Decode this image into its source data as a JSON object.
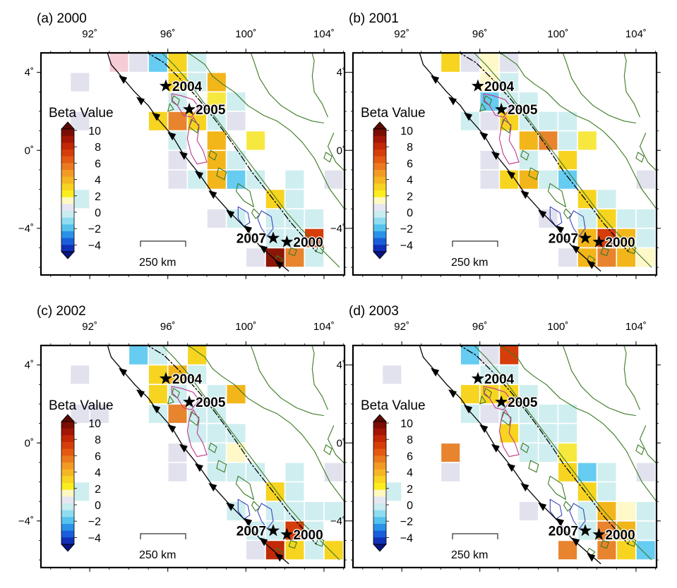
{
  "figure": {
    "panels": [
      {
        "label": "(a) 2000",
        "cells": [
          [
            93,
            4,
            "#f6ccd6"
          ],
          [
            94,
            4,
            "#e2e2ef"
          ],
          [
            95,
            4,
            "#66ccf2"
          ],
          [
            96,
            4,
            "#f7d420"
          ],
          [
            97,
            4,
            "#cfeef0"
          ],
          [
            98,
            3,
            "#f3b61a"
          ],
          [
            97,
            3,
            "#cfeef0"
          ],
          [
            96,
            3,
            "#f7d420"
          ],
          [
            91,
            3,
            "#e2e2ef"
          ],
          [
            96,
            2,
            "#cfeef0"
          ],
          [
            98,
            2,
            "#f7e840"
          ],
          [
            99,
            2,
            "#cfeef0"
          ],
          [
            95,
            1,
            "#f7d420"
          ],
          [
            96,
            1,
            "#e8842e"
          ],
          [
            97,
            1,
            "#f7d420"
          ],
          [
            98,
            1,
            "#cfeef0"
          ],
          [
            99,
            1,
            "#e2e2ef"
          ],
          [
            91,
            1,
            "#e2e2ef"
          ],
          [
            96,
            0,
            "#cfeef0"
          ],
          [
            98,
            0,
            "#f3b61a"
          ],
          [
            100,
            0,
            "#f7e840"
          ],
          [
            96,
            -1,
            "#e2e2ef"
          ],
          [
            98,
            -1,
            "#f3b61a"
          ],
          [
            99,
            -1,
            "#cfeef0"
          ],
          [
            96,
            -2,
            "#e2e2ef"
          ],
          [
            97,
            -2,
            "#cfeef0"
          ],
          [
            98,
            -2,
            "#f3b61a"
          ],
          [
            99,
            -2,
            "#66ccf2"
          ],
          [
            100,
            -2,
            "#cfeef0"
          ],
          [
            102,
            -2,
            "#cfeef0"
          ],
          [
            104,
            -2,
            "#e2e2ef"
          ],
          [
            91,
            -3,
            "#cfeef0"
          ],
          [
            101,
            -3,
            "#f7d420"
          ],
          [
            102,
            -3,
            "#cfeef0"
          ],
          [
            98,
            -4,
            "#e2e2ef"
          ],
          [
            99,
            -4,
            "#cfeef0"
          ],
          [
            101,
            -4,
            "#cfeef0"
          ],
          [
            102,
            -4,
            "#cfeef0"
          ],
          [
            103,
            -4,
            "#cfeef0"
          ],
          [
            101,
            -5,
            "#cfeef0"
          ],
          [
            102,
            -5,
            "#cfeef0"
          ],
          [
            103,
            -5,
            "#d53e0a"
          ],
          [
            100,
            -6,
            "#e2e2ef"
          ],
          [
            101,
            -6,
            "#8a1708"
          ],
          [
            102,
            -6,
            "#e8842e"
          ],
          [
            103,
            -6,
            "#cfeef0"
          ]
        ]
      },
      {
        "label": "(b) 2001",
        "cells": [
          [
            94,
            4,
            "#f7d420"
          ],
          [
            95,
            4,
            "#e2e2ef"
          ],
          [
            96,
            4,
            "#fff8c8"
          ],
          [
            97,
            4,
            "#e2e2ef"
          ],
          [
            96,
            3,
            "#fff8c8"
          ],
          [
            97,
            3,
            "#cfeef0"
          ],
          [
            96,
            2,
            "#66ccf2"
          ],
          [
            97,
            2,
            "#cfeef0"
          ],
          [
            98,
            2,
            "#cfeef0"
          ],
          [
            95,
            1,
            "#cfeef0"
          ],
          [
            96,
            1,
            "#e2e2ef"
          ],
          [
            97,
            1,
            "#f7d420"
          ],
          [
            98,
            1,
            "#cfeef0"
          ],
          [
            99,
            1,
            "#cfeef0"
          ],
          [
            100,
            1,
            "#cfeef0"
          ],
          [
            98,
            0,
            "#f3b61a"
          ],
          [
            99,
            0,
            "#e8842e"
          ],
          [
            100,
            0,
            "#cfeef0"
          ],
          [
            101,
            0,
            "#f7e840"
          ],
          [
            96,
            -1,
            "#e2e2ef"
          ],
          [
            98,
            -1,
            "#cfeef0"
          ],
          [
            100,
            -1,
            "#f7d420"
          ],
          [
            96,
            -2,
            "#e2e2ef"
          ],
          [
            97,
            -2,
            "#f7d420"
          ],
          [
            98,
            -2,
            "#f3b61a"
          ],
          [
            99,
            -2,
            "#cfeef0"
          ],
          [
            100,
            -2,
            "#66ccf2"
          ],
          [
            104,
            -2,
            "#e2e2ef"
          ],
          [
            101,
            -3,
            "#f7d420"
          ],
          [
            102,
            -3,
            "#cfeef0"
          ],
          [
            99,
            -4,
            "#e2e2ef"
          ],
          [
            101,
            -4,
            "#cfeef0"
          ],
          [
            102,
            -4,
            "#f7d420"
          ],
          [
            103,
            -4,
            "#cfeef0"
          ],
          [
            104,
            -4,
            "#cfeef0"
          ],
          [
            101,
            -5,
            "#f3b61a"
          ],
          [
            102,
            -5,
            "#d53e0a"
          ],
          [
            103,
            -5,
            "#f3b61a"
          ],
          [
            104,
            -5,
            "#cfeef0"
          ],
          [
            100,
            -6,
            "#e2e2ef"
          ],
          [
            101,
            -6,
            "#f3b61a"
          ],
          [
            102,
            -6,
            "#e8842e"
          ],
          [
            103,
            -6,
            "#f3b61a"
          ],
          [
            104,
            -6,
            "#fff8c8"
          ]
        ]
      },
      {
        "label": "(c) 2002",
        "cells": [
          [
            94,
            4,
            "#66ccf2"
          ],
          [
            95,
            4,
            "#cfeef0"
          ],
          [
            97,
            4,
            "#f7d420"
          ],
          [
            91,
            3,
            "#e2e2ef"
          ],
          [
            95,
            3,
            "#f7d420"
          ],
          [
            96,
            3,
            "#f3b61a"
          ],
          [
            97,
            3,
            "#cfeef0"
          ],
          [
            95,
            2,
            "#f7d420"
          ],
          [
            96,
            2,
            "#cfeef0"
          ],
          [
            98,
            2,
            "#cfeef0"
          ],
          [
            99,
            2,
            "#f3b61a"
          ],
          [
            91,
            1,
            "#e2e2ef"
          ],
          [
            92,
            1,
            "#e2e2ef"
          ],
          [
            95,
            1,
            "#cfeef0"
          ],
          [
            96,
            1,
            "#e8842e"
          ],
          [
            97,
            1,
            "#cfeef0"
          ],
          [
            98,
            1,
            "#cfeef0"
          ],
          [
            97,
            0,
            "#cfeef0"
          ],
          [
            98,
            0,
            "#cfeef0"
          ],
          [
            99,
            0,
            "#cfeef0"
          ],
          [
            96,
            -1,
            "#e2e2ef"
          ],
          [
            98,
            -1,
            "#cfeef0"
          ],
          [
            99,
            -1,
            "#fff8c8"
          ],
          [
            96,
            -2,
            "#e2e2ef"
          ],
          [
            98,
            -2,
            "#cfeef0"
          ],
          [
            99,
            -2,
            "#cfeef0"
          ],
          [
            100,
            -2,
            "#cfeef0"
          ],
          [
            102,
            -2,
            "#cfeef0"
          ],
          [
            104,
            -2,
            "#e2e2ef"
          ],
          [
            91,
            -3,
            "#cfeef0"
          ],
          [
            101,
            -3,
            "#f7d420"
          ],
          [
            102,
            -3,
            "#cfeef0"
          ],
          [
            99,
            -4,
            "#cfeef0"
          ],
          [
            101,
            -4,
            "#cfeef0"
          ],
          [
            102,
            -4,
            "#cfeef0"
          ],
          [
            103,
            -4,
            "#cfeef0"
          ],
          [
            104,
            -4,
            "#cfeef0"
          ],
          [
            100,
            -5,
            "#cfeef0"
          ],
          [
            101,
            -5,
            "#cfeef0"
          ],
          [
            102,
            -5,
            "#d53e0a"
          ],
          [
            103,
            -5,
            "#cfeef0"
          ],
          [
            100,
            -6,
            "#e2e2ef"
          ],
          [
            101,
            -6,
            "#c02a08"
          ],
          [
            102,
            -6,
            "#f7d420"
          ],
          [
            103,
            -6,
            "#cfeef0"
          ],
          [
            104,
            -6,
            "#f7d420"
          ]
        ]
      },
      {
        "label": "(d) 2003",
        "cells": [
          [
            95,
            4,
            "#66ccf2"
          ],
          [
            96,
            4,
            "#e2e2ef"
          ],
          [
            97,
            4,
            "#d53e0a"
          ],
          [
            91,
            3,
            "#e2e2ef"
          ],
          [
            96,
            3,
            "#cfeef0"
          ],
          [
            97,
            3,
            "#cfeef0"
          ],
          [
            95,
            2,
            "#f7d420"
          ],
          [
            96,
            2,
            "#f7d420"
          ],
          [
            97,
            2,
            "#f7d420"
          ],
          [
            98,
            2,
            "#cfeef0"
          ],
          [
            95,
            1,
            "#cfeef0"
          ],
          [
            96,
            1,
            "#e2e2ef"
          ],
          [
            97,
            1,
            "#cfeef0"
          ],
          [
            98,
            1,
            "#cfeef0"
          ],
          [
            99,
            1,
            "#cfeef0"
          ],
          [
            100,
            1,
            "#cfeef0"
          ],
          [
            97,
            0,
            "#f7d420"
          ],
          [
            98,
            0,
            "#cfeef0"
          ],
          [
            99,
            0,
            "#cfeef0"
          ],
          [
            100,
            0,
            "#cfeef0"
          ],
          [
            94,
            -1,
            "#e8842e"
          ],
          [
            98,
            -1,
            "#cfeef0"
          ],
          [
            99,
            -1,
            "#cfeef0"
          ],
          [
            100,
            -1,
            "#f7e840"
          ],
          [
            94,
            -2,
            "#e2e2ef"
          ],
          [
            100,
            -2,
            "#f7d420"
          ],
          [
            101,
            -2,
            "#66ccf2"
          ],
          [
            102,
            -2,
            "#cfeef0"
          ],
          [
            104,
            -2,
            "#e2e2ef"
          ],
          [
            91,
            -3,
            "#cfeef0"
          ],
          [
            101,
            -3,
            "#f7d420"
          ],
          [
            102,
            -3,
            "#cfeef0"
          ],
          [
            98,
            -4,
            "#e2e2ef"
          ],
          [
            101,
            -4,
            "#cfeef0"
          ],
          [
            102,
            -4,
            "#f3b61a"
          ],
          [
            103,
            -4,
            "#fff8c8"
          ],
          [
            104,
            -4,
            "#cfeef0"
          ],
          [
            101,
            -5,
            "#cfeef0"
          ],
          [
            102,
            -5,
            "#e8842e"
          ],
          [
            103,
            -5,
            "#f3b61a"
          ],
          [
            104,
            -5,
            "#cfeef0"
          ],
          [
            100,
            -6,
            "#e8842e"
          ],
          [
            102,
            -6,
            "#e8842e"
          ],
          [
            103,
            -6,
            "#f7d420"
          ],
          [
            104,
            -6,
            "#66ccf2"
          ]
        ]
      }
    ],
    "lon_ticks": [
      "92˚",
      "96˚",
      "100˚",
      "104˚"
    ],
    "lat_ticks": [
      "4˚",
      "0˚",
      "−4˚"
    ],
    "colorbar": {
      "title": "Beta Value",
      "tick_labels": [
        "10",
        "8",
        "6",
        "4",
        "2",
        "0",
        "−2",
        "−4"
      ],
      "colors": [
        "#7a0d04",
        "#a31505",
        "#c22706",
        "#d53e0a",
        "#e35a12",
        "#eb7a1e",
        "#f29a24",
        "#f5b623",
        "#f8d321",
        "#fbec1e",
        "#fff8c0",
        "#e6e6f2",
        "#c8ecf0",
        "#8fdcf2",
        "#55c2ee",
        "#2a92e8",
        "#1a5edc",
        "#1030b8"
      ],
      "overflow_high": "#5a0a02",
      "overflow_low": "#0a1480"
    },
    "events": [
      {
        "label": "2004",
        "lon": 95.9,
        "lat": 3.3
      },
      {
        "label": "2005",
        "lon": 97.1,
        "lat": 2.1
      },
      {
        "label": "2007",
        "lon": 101.4,
        "lat": -4.5
      },
      {
        "label": "2000",
        "lon": 102.1,
        "lat": -4.7
      }
    ],
    "scale_bar": {
      "label": "250 km"
    },
    "colors": {
      "coast": "#3a7a22",
      "trench": "#000000",
      "fault": "#000000",
      "contour_magenta": "#c0388a",
      "contour_blue": "#3845c0",
      "grid_line": "#ffffff"
    }
  }
}
